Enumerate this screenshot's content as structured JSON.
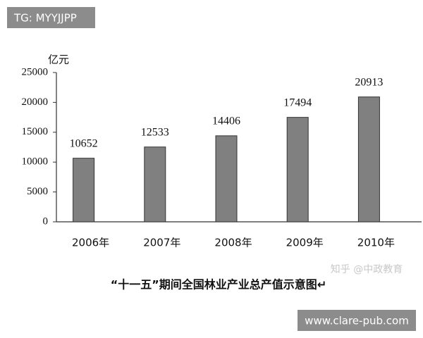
{
  "chart_data": {
    "type": "bar",
    "y_unit": "亿元",
    "caption": "“十一五”期间全国林业产业总产值示意图↵",
    "categories": [
      "2006年",
      "2007年",
      "2008年",
      "2009年",
      "2010年"
    ],
    "values": [
      10652,
      12533,
      14406,
      17494,
      20913
    ],
    "color": "#808080",
    "ylim": [
      0,
      25000
    ],
    "yticks": [
      0,
      5000,
      10000,
      15000,
      20000,
      25000
    ],
    "grid": false
  },
  "watermarks": {
    "top_left": "TG: MYYJJPP",
    "source": "知乎 @中政教育",
    "bottom_right": "www.clare-pub.com"
  }
}
